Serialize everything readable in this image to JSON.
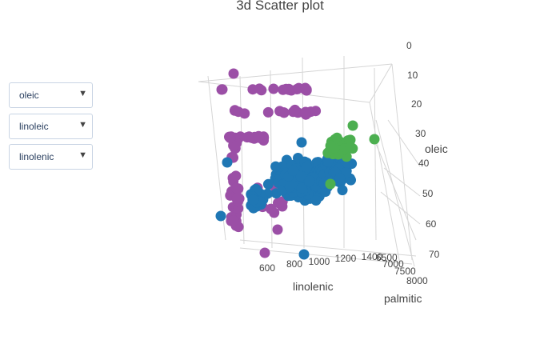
{
  "title": "3d Scatter plot",
  "dropdowns": [
    {
      "label": "oleic",
      "arrow": "▼"
    },
    {
      "label": "linoleic",
      "arrow": "▼"
    },
    {
      "label": "linolenic",
      "arrow": "▼"
    }
  ],
  "chart_data": {
    "type": "scatter",
    "title": "3d Scatter plot",
    "axes": {
      "oleic": {
        "label": "oleic",
        "range": [
          0,
          70
        ],
        "ticks": [
          "0",
          "10",
          "20",
          "30",
          "40",
          "50",
          "60",
          "70"
        ]
      },
      "palmitic": {
        "label": "palmitic",
        "range": [
          6500,
          8000
        ],
        "ticks": [
          "6500",
          "7000",
          "7500",
          "8000"
        ]
      },
      "linolenic": {
        "label": "linolenic",
        "range": [
          500,
          1400
        ],
        "ticks": [
          "600",
          "800",
          "1000",
          "1200",
          "1400"
        ]
      }
    },
    "grid": true,
    "series": [
      {
        "color": "#9b4fa6",
        "count": 95
      },
      {
        "color": "#1f77b4",
        "count": 260
      },
      {
        "color": "#4caf50",
        "count": 60
      }
    ]
  }
}
